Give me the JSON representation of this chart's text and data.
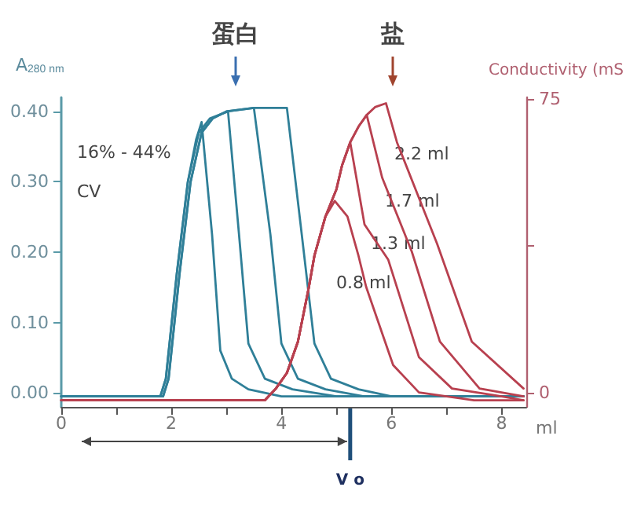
{
  "chart_data": {
    "type": "line",
    "ylabel": "A$_{280 nm}$",
    "y2label": "Conductivity (mS",
    "xlabel": "ml",
    "series": [
      {
        "color": "#2f7f98",
        "x": [
          0,
          1.8,
          1.9,
          2.1,
          2.3,
          2.45,
          2.55,
          2.74,
          2.89,
          3.1,
          3.4,
          4.0,
          8.4
        ],
        "values": [
          -0.005,
          -0.005,
          0.02,
          0.17,
          0.3,
          0.36,
          0.385,
          0.225,
          0.06,
          0.02,
          0.005,
          -0.005,
          -0.005
        ]
      },
      {
        "color": "#2f7f98",
        "x": [
          0,
          1.8,
          1.9,
          2.1,
          2.3,
          2.5,
          2.7,
          3.03,
          3.23,
          3.4,
          3.7,
          4.2,
          5.0,
          8.4
        ],
        "values": [
          -0.005,
          -0.005,
          0.02,
          0.17,
          0.3,
          0.37,
          0.39,
          0.4,
          0.225,
          0.07,
          0.02,
          0.005,
          -0.005,
          -0.005
        ]
      },
      {
        "color": "#2f7f98",
        "x": [
          0,
          1.85,
          1.95,
          2.15,
          2.35,
          2.55,
          2.75,
          3.0,
          3.5,
          3.8,
          4.0,
          4.3,
          4.8,
          5.5,
          8.4
        ],
        "values": [
          -0.005,
          -0.005,
          0.02,
          0.17,
          0.3,
          0.37,
          0.39,
          0.4,
          0.405,
          0.225,
          0.07,
          0.02,
          0.005,
          -0.005,
          -0.005
        ]
      },
      {
        "color": "#2f7f98",
        "x": [
          0,
          1.85,
          1.95,
          2.15,
          2.35,
          2.55,
          2.75,
          3.0,
          3.5,
          4.1,
          4.37,
          4.6,
          4.9,
          5.4,
          6.0,
          8.4
        ],
        "values": [
          -0.005,
          -0.005,
          0.02,
          0.17,
          0.3,
          0.37,
          0.39,
          0.4,
          0.405,
          0.405,
          0.225,
          0.07,
          0.02,
          0.005,
          -0.005,
          -0.005
        ]
      },
      {
        "color": "#b8404f",
        "axis": "y2",
        "x": [
          0,
          3.7,
          3.9,
          4.1,
          4.3,
          4.5,
          4.6,
          4.8,
          4.97,
          5.2,
          5.4,
          5.54,
          6.03,
          6.5,
          7.5,
          8.4
        ],
        "values": [
          -2,
          -2,
          1,
          5,
          13,
          27,
          35,
          45,
          49,
          45,
          35,
          27,
          7,
          0,
          -2,
          -2
        ]
      },
      {
        "color": "#b8404f",
        "axis": "y2",
        "x": [
          0,
          3.7,
          3.9,
          4.1,
          4.3,
          4.5,
          4.6,
          4.8,
          5.0,
          5.1,
          5.25,
          5.51,
          5.94,
          6.5,
          7.1,
          8.0,
          8.4
        ],
        "values": [
          -2,
          -2,
          1,
          5,
          13,
          27,
          35,
          45,
          52,
          58,
          64,
          43,
          34,
          9,
          1,
          -1,
          -2
        ]
      },
      {
        "color": "#b8404f",
        "axis": "y2",
        "x": [
          0,
          3.7,
          3.9,
          4.1,
          4.3,
          4.5,
          4.6,
          4.8,
          5.0,
          5.1,
          5.25,
          5.4,
          5.55,
          5.83,
          6.37,
          6.88,
          7.6,
          8.4
        ],
        "values": [
          -2,
          -2,
          1,
          5,
          13,
          27,
          35,
          45,
          52,
          58,
          64,
          68,
          71,
          55,
          36,
          13,
          1,
          -1
        ]
      },
      {
        "color": "#b8404f",
        "axis": "y2",
        "x": [
          0,
          3.7,
          3.9,
          4.1,
          4.3,
          4.5,
          4.6,
          4.8,
          5.0,
          5.1,
          5.25,
          5.4,
          5.55,
          5.7,
          5.9,
          6.1,
          6.83,
          7.46,
          8.4
        ],
        "values": [
          -2,
          -2,
          1,
          5,
          13,
          27,
          35,
          45,
          52,
          58,
          64,
          68,
          71,
          73,
          74,
          64,
          38,
          13,
          1
        ]
      }
    ],
    "xlim": [
      0,
      8.45
    ],
    "xticks": [
      0,
      {
        "value": 1,
        "label": null
      },
      2,
      {
        "value": 3,
        "label": null
      },
      4,
      {
        "value": 5,
        "label": null
      },
      6,
      {
        "value": 7,
        "label": null
      },
      8
    ],
    "ylim": [
      -0.02,
      0.42
    ],
    "yticks": [
      {
        "value": 0,
        "label": "0.00"
      },
      {
        "value": 0.1,
        "label": "0.10"
      },
      {
        "value": 0.2,
        "label": "0.20"
      },
      {
        "value": 0.3,
        "label": "0.30"
      },
      {
        "value": 0.4,
        "label": "0.40"
      }
    ],
    "y2lim": [
      -3.7,
      75.5
    ],
    "y2ticks": [
      0,
      {
        "value": 37.5,
        "label": null
      },
      75
    ],
    "ref_lines": [
      {
        "axis": "x",
        "value": 5.25,
        "label": "V o",
        "color": "#1f4f7a"
      }
    ],
    "annotations": [
      "蛋白",
      "盐",
      "16% - 44%",
      "CV",
      "2.2 ml",
      "1.7 ml",
      "1.3 ml",
      "0.8 ml"
    ],
    "grid": false,
    "marker": "none",
    "line_style": "solid"
  }
}
